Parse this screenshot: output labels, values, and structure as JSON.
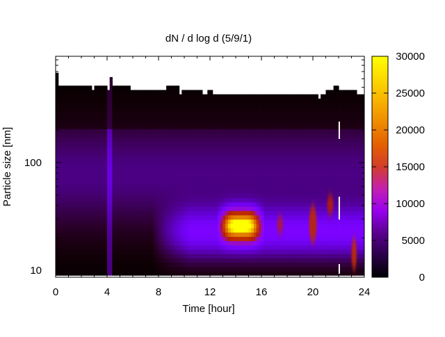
{
  "chart_data": {
    "type": "heatmap",
    "title": "dN / d log d (5/9/1)",
    "xlabel": "Time [hour]",
    "ylabel": "Particle size [nm]",
    "x_ticks": [
      0,
      4,
      8,
      12,
      16,
      20,
      24
    ],
    "x_range": [
      0,
      24
    ],
    "y_scale": "log",
    "y_ticks": [
      10,
      100
    ],
    "y_range": [
      9,
      1000
    ],
    "colorbar": {
      "palette": "gnuplot black-purple-red-yellow",
      "range": [
        0,
        30000
      ],
      "ticks": [
        0,
        5000,
        10000,
        15000,
        20000,
        25000,
        30000
      ]
    },
    "grid": false,
    "features": {
      "upper_size_limit_nm": [
        [
          0,
          560
        ],
        [
          0.1,
          660
        ],
        [
          0.2,
          520
        ],
        [
          1,
          510
        ],
        [
          2.6,
          490
        ],
        [
          2.6,
          500
        ],
        [
          2.8,
          480
        ],
        [
          3.1,
          500
        ],
        [
          4.1,
          480
        ],
        [
          4.2,
          600
        ],
        [
          4.5,
          520
        ],
        [
          5.9,
          490
        ],
        [
          6.1,
          470
        ],
        [
          8.5,
          470
        ],
        [
          8.6,
          500
        ],
        [
          9.6,
          450
        ],
        [
          9.8,
          470
        ],
        [
          10.4,
          470
        ],
        [
          10.6,
          460
        ],
        [
          11.1,
          470
        ],
        [
          11.4,
          450
        ],
        [
          11.8,
          460
        ],
        [
          12.3,
          430
        ],
        [
          12.6,
          420
        ],
        [
          14.6,
          450
        ],
        [
          16.1,
          420
        ],
        [
          16.9,
          430
        ],
        [
          19.1,
          420
        ],
        [
          19.5,
          430
        ],
        [
          20.3,
          410
        ],
        [
          20.6,
          440
        ],
        [
          21.0,
          460
        ],
        [
          21.6,
          530
        ],
        [
          22.1,
          470
        ],
        [
          23.4,
          420
        ],
        [
          24,
          460
        ]
      ],
      "events": [
        {
          "name": "nucleation-burst",
          "t": [
            12.8,
            16.0
          ],
          "d_nm": [
            15,
            35
          ],
          "peak": 26000
        },
        {
          "name": "spike-17.5h",
          "t": [
            17.2,
            17.7
          ],
          "d_nm": [
            22,
            32
          ],
          "peak": 14000
        },
        {
          "name": "spike-20h",
          "t": [
            19.7,
            20.3
          ],
          "d_nm": [
            18,
            40
          ],
          "peak": 16000
        },
        {
          "name": "spike-21.3h",
          "t": [
            21.1,
            21.6
          ],
          "d_nm": [
            33,
            50
          ],
          "peak": 15000
        },
        {
          "name": "spike-23.2h",
          "t": [
            23.0,
            23.4
          ],
          "d_nm": [
            10,
            20
          ],
          "peak": 17000
        }
      ]
    }
  }
}
